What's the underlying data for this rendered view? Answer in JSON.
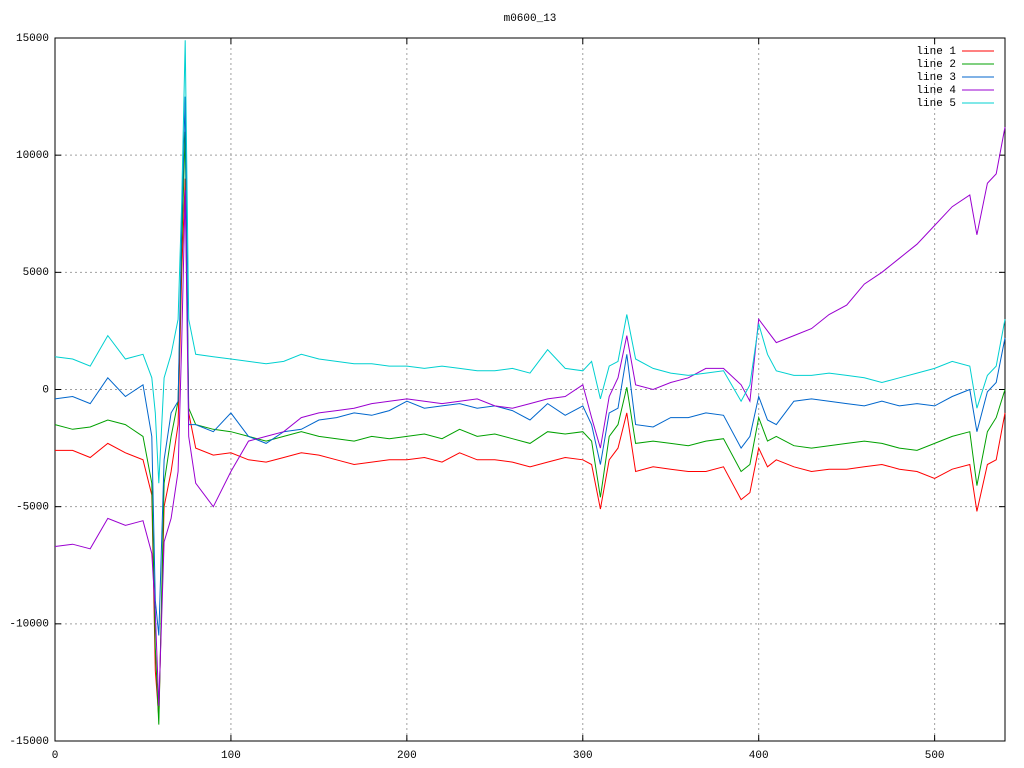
{
  "chart_data": {
    "type": "line",
    "title": "m0600_13",
    "x": [
      0,
      10,
      20,
      30,
      40,
      50,
      55,
      57,
      59,
      62,
      66,
      70,
      72,
      74,
      76,
      80,
      90,
      100,
      110,
      120,
      130,
      140,
      150,
      160,
      170,
      180,
      190,
      200,
      210,
      220,
      230,
      240,
      250,
      260,
      270,
      280,
      290,
      300,
      305,
      310,
      315,
      320,
      325,
      330,
      340,
      350,
      360,
      370,
      380,
      390,
      395,
      400,
      405,
      410,
      420,
      430,
      440,
      450,
      460,
      470,
      480,
      490,
      500,
      510,
      520,
      524,
      530,
      535,
      540
    ],
    "series": [
      {
        "name": "line 1",
        "color": "#ff0000",
        "values": [
          -2600,
          -2600,
          -2900,
          -2300,
          -2700,
          -3000,
          -4500,
          -12000,
          -14000,
          -5000,
          -3500,
          -1500,
          5000,
          9000,
          -1000,
          -2500,
          -2800,
          -2700,
          -3000,
          -3100,
          -2900,
          -2700,
          -2800,
          -3000,
          -3200,
          -3100,
          -3000,
          -3000,
          -2900,
          -3100,
          -2700,
          -3000,
          -3000,
          -3100,
          -3300,
          -3100,
          -2900,
          -3000,
          -3200,
          -5100,
          -3000,
          -2500,
          -1000,
          -3500,
          -3300,
          -3400,
          -3500,
          -3500,
          -3300,
          -4700,
          -4400,
          -2500,
          -3300,
          -3000,
          -3300,
          -3500,
          -3400,
          -3400,
          -3300,
          -3200,
          -3400,
          -3500,
          -3800,
          -3400,
          -3200,
          -5200,
          -3200,
          -3000,
          -1000
        ]
      },
      {
        "name": "line 2",
        "color": "#00a000",
        "values": [
          -1500,
          -1700,
          -1600,
          -1300,
          -1500,
          -2000,
          -4000,
          -11000,
          -14300,
          -4000,
          -2000,
          -500,
          6000,
          11000,
          -800,
          -1500,
          -1700,
          -1800,
          -2000,
          -2200,
          -2000,
          -1800,
          -2000,
          -2100,
          -2200,
          -2000,
          -2100,
          -2000,
          -1900,
          -2100,
          -1700,
          -2000,
          -1900,
          -2100,
          -2300,
          -1800,
          -1900,
          -1800,
          -2200,
          -4600,
          -2000,
          -1500,
          100,
          -2300,
          -2200,
          -2300,
          -2400,
          -2200,
          -2100,
          -3500,
          -3200,
          -1200,
          -2200,
          -2000,
          -2400,
          -2500,
          -2400,
          -2300,
          -2200,
          -2300,
          -2500,
          -2600,
          -2300,
          -2000,
          -1800,
          -4100,
          -1800,
          -1200,
          0
        ]
      },
      {
        "name": "line 3",
        "color": "#0066cc",
        "values": [
          -400,
          -300,
          -600,
          500,
          -300,
          200,
          -2000,
          -9000,
          -10500,
          -3000,
          -1000,
          -500,
          7000,
          12500,
          -1500,
          -1500,
          -1800,
          -1000,
          -2000,
          -2300,
          -1800,
          -1700,
          -1300,
          -1200,
          -1000,
          -1100,
          -900,
          -500,
          -800,
          -700,
          -600,
          -800,
          -700,
          -900,
          -1300,
          -600,
          -1100,
          -700,
          -1500,
          -3200,
          -1000,
          -800,
          1500,
          -1500,
          -1600,
          -1200,
          -1200,
          -1000,
          -1100,
          -2500,
          -2000,
          -300,
          -1300,
          -1500,
          -500,
          -400,
          -500,
          -600,
          -700,
          -500,
          -700,
          -600,
          -700,
          -300,
          0,
          -1800,
          -100,
          300,
          2200
        ]
      },
      {
        "name": "line 4",
        "color": "#9a00d0",
        "values": [
          -6700,
          -6600,
          -6800,
          -5500,
          -5800,
          -5600,
          -7000,
          -9500,
          -13500,
          -6500,
          -5500,
          -3500,
          2000,
          8500,
          -2000,
          -4000,
          -5000,
          -3500,
          -2200,
          -2000,
          -1800,
          -1200,
          -1000,
          -900,
          -800,
          -600,
          -500,
          -400,
          -500,
          -600,
          -500,
          -400,
          -700,
          -800,
          -600,
          -400,
          -300,
          200,
          -1200,
          -2500,
          -300,
          500,
          2300,
          200,
          0,
          300,
          500,
          900,
          900,
          200,
          -500,
          3000,
          2500,
          2000,
          2300,
          2600,
          3200,
          3600,
          4500,
          5000,
          5600,
          6200,
          7000,
          7800,
          8300,
          6600,
          8800,
          9200,
          11200
        ]
      },
      {
        "name": "line 5",
        "color": "#00d0d0",
        "values": [
          1400,
          1300,
          1000,
          2300,
          1300,
          1500,
          500,
          -1000,
          -4000,
          500,
          1500,
          3000,
          8000,
          14900,
          3000,
          1500,
          1400,
          1300,
          1200,
          1100,
          1200,
          1500,
          1300,
          1200,
          1100,
          1100,
          1000,
          1000,
          900,
          1000,
          900,
          800,
          800,
          900,
          700,
          1700,
          900,
          800,
          1200,
          -400,
          1000,
          1200,
          3200,
          1300,
          900,
          700,
          600,
          700,
          800,
          -500,
          200,
          2800,
          1500,
          800,
          600,
          600,
          700,
          600,
          500,
          300,
          500,
          700,
          900,
          1200,
          1000,
          -800,
          600,
          1000,
          3000
        ]
      }
    ],
    "xlim": [
      0,
      540
    ],
    "xticks": [
      0,
      100,
      200,
      300,
      400,
      500
    ],
    "ylim": [
      -15000,
      15000
    ],
    "yticks": [
      -15000,
      -10000,
      -5000,
      0,
      5000,
      10000,
      15000
    ],
    "grid": true,
    "legend": "top-right"
  }
}
